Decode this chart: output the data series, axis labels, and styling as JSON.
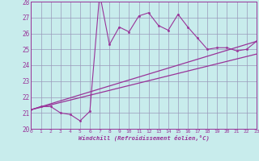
{
  "xlabel": "Windchill (Refroidissement éolien,°C)",
  "background_color": "#c8ecec",
  "grid_color": "#9999bb",
  "line_color": "#993399",
  "xmin": 0,
  "xmax": 23,
  "ymin": 20,
  "ymax": 28,
  "yticks": [
    20,
    21,
    22,
    23,
    24,
    25,
    26,
    27,
    28
  ],
  "xticks": [
    0,
    1,
    2,
    3,
    4,
    5,
    6,
    7,
    8,
    9,
    10,
    11,
    12,
    13,
    14,
    15,
    16,
    17,
    18,
    19,
    20,
    21,
    22,
    23
  ],
  "main_x": [
    0,
    1,
    2,
    3,
    4,
    5,
    6,
    7,
    8,
    9,
    10,
    11,
    12,
    13,
    14,
    15,
    16,
    17,
    18,
    19,
    20,
    21,
    22,
    23
  ],
  "main_y": [
    21.2,
    21.4,
    21.4,
    21.0,
    20.9,
    20.5,
    21.1,
    28.5,
    25.3,
    26.4,
    26.1,
    27.1,
    27.3,
    26.5,
    26.2,
    27.2,
    26.4,
    25.7,
    25.0,
    25.1,
    25.1,
    24.9,
    25.0,
    25.5
  ],
  "line1_x": [
    0,
    23
  ],
  "line1_y": [
    21.2,
    25.5
  ],
  "line2_x": [
    0,
    23
  ],
  "line2_y": [
    21.2,
    24.7
  ]
}
